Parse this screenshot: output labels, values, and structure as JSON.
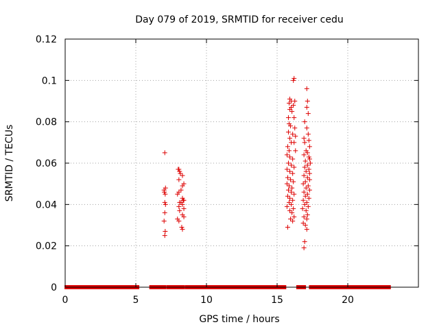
{
  "chart_data": {
    "type": "scatter",
    "title": "Day 079 of 2019, SRMTID for receiver cedu",
    "xlabel": "GPS time / hours",
    "ylabel": "SRMTID / TECUs",
    "xlim": [
      0,
      25
    ],
    "ylim": [
      0,
      0.12
    ],
    "xticks": [
      0,
      5,
      10,
      15,
      20
    ],
    "xtick_labels": [
      "0",
      "5",
      "10",
      "15",
      "20"
    ],
    "yticks": [
      0,
      0.02,
      0.04,
      0.06,
      0.08,
      0.1,
      0.12
    ],
    "ytick_labels": [
      "0",
      "0.02",
      "0.04",
      "0.06",
      "0.08",
      "0.1",
      "0.12"
    ],
    "grid": true,
    "marker": "+",
    "color": "#dd0000",
    "zero_segments": [
      [
        0.1,
        1.4
      ],
      [
        1.6,
        2.7
      ],
      [
        2.9,
        3.6
      ],
      [
        3.8,
        4.2
      ],
      [
        4.4,
        4.7
      ],
      [
        4.9,
        5.1
      ],
      [
        6.1,
        7.0
      ],
      [
        7.3,
        7.8
      ],
      [
        8.0,
        8.3
      ],
      [
        8.6,
        13.8
      ],
      [
        14.0,
        15.5
      ],
      [
        16.5,
        16.9
      ],
      [
        17.4,
        22.9
      ]
    ],
    "points": [
      [
        7.05,
        0.065
      ],
      [
        7.1,
        0.048
      ],
      [
        7.0,
        0.047
      ],
      [
        7.02,
        0.046
      ],
      [
        7.08,
        0.045
      ],
      [
        7.05,
        0.041
      ],
      [
        7.1,
        0.04
      ],
      [
        7.05,
        0.036
      ],
      [
        7.0,
        0.032
      ],
      [
        7.08,
        0.027
      ],
      [
        7.05,
        0.025
      ],
      [
        8.0,
        0.057
      ],
      [
        8.05,
        0.057
      ],
      [
        8.1,
        0.056
      ],
      [
        8.15,
        0.055
      ],
      [
        8.3,
        0.054
      ],
      [
        8.05,
        0.052
      ],
      [
        8.4,
        0.05
      ],
      [
        8.3,
        0.049
      ],
      [
        8.2,
        0.047
      ],
      [
        8.05,
        0.046
      ],
      [
        7.95,
        0.045
      ],
      [
        8.3,
        0.043
      ],
      [
        8.35,
        0.042
      ],
      [
        8.4,
        0.042
      ],
      [
        8.2,
        0.041
      ],
      [
        8.1,
        0.041
      ],
      [
        8.3,
        0.04
      ],
      [
        8.05,
        0.039
      ],
      [
        8.4,
        0.038
      ],
      [
        8.1,
        0.037
      ],
      [
        8.3,
        0.035
      ],
      [
        8.4,
        0.034
      ],
      [
        7.95,
        0.033
      ],
      [
        8.05,
        0.032
      ],
      [
        8.25,
        0.029
      ],
      [
        8.3,
        0.028
      ],
      [
        16.15,
        0.1
      ],
      [
        16.2,
        0.101
      ],
      [
        15.9,
        0.091
      ],
      [
        16.0,
        0.09
      ],
      [
        16.25,
        0.09
      ],
      [
        15.85,
        0.089
      ],
      [
        16.0,
        0.087
      ],
      [
        16.15,
        0.088
      ],
      [
        15.9,
        0.086
      ],
      [
        16.05,
        0.085
      ],
      [
        15.8,
        0.082
      ],
      [
        16.2,
        0.082
      ],
      [
        15.85,
        0.079
      ],
      [
        15.95,
        0.078
      ],
      [
        16.25,
        0.077
      ],
      [
        15.8,
        0.075
      ],
      [
        16.1,
        0.074
      ],
      [
        16.3,
        0.073
      ],
      [
        15.9,
        0.072
      ],
      [
        16.0,
        0.07
      ],
      [
        16.2,
        0.07
      ],
      [
        15.75,
        0.068
      ],
      [
        15.85,
        0.066
      ],
      [
        16.3,
        0.066
      ],
      [
        15.7,
        0.064
      ],
      [
        15.9,
        0.063
      ],
      [
        16.1,
        0.062
      ],
      [
        15.8,
        0.06
      ],
      [
        16.0,
        0.059
      ],
      [
        16.2,
        0.058
      ],
      [
        15.7,
        0.057
      ],
      [
        15.9,
        0.056
      ],
      [
        16.1,
        0.055
      ],
      [
        15.75,
        0.053
      ],
      [
        15.95,
        0.052
      ],
      [
        16.15,
        0.051
      ],
      [
        15.7,
        0.05
      ],
      [
        15.85,
        0.049
      ],
      [
        16.05,
        0.048
      ],
      [
        15.8,
        0.047
      ],
      [
        16.0,
        0.046
      ],
      [
        16.2,
        0.045
      ],
      [
        15.75,
        0.044
      ],
      [
        15.9,
        0.043
      ],
      [
        16.1,
        0.042
      ],
      [
        15.85,
        0.041
      ],
      [
        16.0,
        0.04
      ],
      [
        15.7,
        0.039
      ],
      [
        16.15,
        0.038
      ],
      [
        15.9,
        0.037
      ],
      [
        16.05,
        0.036
      ],
      [
        16.2,
        0.034
      ],
      [
        15.95,
        0.033
      ],
      [
        16.1,
        0.032
      ],
      [
        15.75,
        0.029
      ],
      [
        17.1,
        0.096
      ],
      [
        17.15,
        0.09
      ],
      [
        17.1,
        0.087
      ],
      [
        17.2,
        0.084
      ],
      [
        16.95,
        0.08
      ],
      [
        17.1,
        0.077
      ],
      [
        17.2,
        0.074
      ],
      [
        16.9,
        0.072
      ],
      [
        17.25,
        0.071
      ],
      [
        16.95,
        0.07
      ],
      [
        17.3,
        0.068
      ],
      [
        17.05,
        0.066
      ],
      [
        17.15,
        0.065
      ],
      [
        16.9,
        0.064
      ],
      [
        17.25,
        0.063
      ],
      [
        17.3,
        0.062
      ],
      [
        17.0,
        0.061
      ],
      [
        17.35,
        0.06
      ],
      [
        17.15,
        0.059
      ],
      [
        16.95,
        0.058
      ],
      [
        17.25,
        0.057
      ],
      [
        17.05,
        0.056
      ],
      [
        17.3,
        0.055
      ],
      [
        16.9,
        0.054
      ],
      [
        17.15,
        0.053
      ],
      [
        17.3,
        0.052
      ],
      [
        17.0,
        0.051
      ],
      [
        16.85,
        0.05
      ],
      [
        17.2,
        0.049
      ],
      [
        17.05,
        0.048
      ],
      [
        17.3,
        0.047
      ],
      [
        16.9,
        0.046
      ],
      [
        17.15,
        0.045
      ],
      [
        17.0,
        0.044
      ],
      [
        17.25,
        0.043
      ],
      [
        16.85,
        0.042
      ],
      [
        17.1,
        0.041
      ],
      [
        16.95,
        0.04
      ],
      [
        17.2,
        0.039
      ],
      [
        16.8,
        0.038
      ],
      [
        17.05,
        0.037
      ],
      [
        17.15,
        0.035
      ],
      [
        16.9,
        0.034
      ],
      [
        17.1,
        0.033
      ],
      [
        16.85,
        0.031
      ],
      [
        17.0,
        0.03
      ],
      [
        17.1,
        0.028
      ],
      [
        16.95,
        0.022
      ],
      [
        16.9,
        0.019
      ]
    ]
  }
}
